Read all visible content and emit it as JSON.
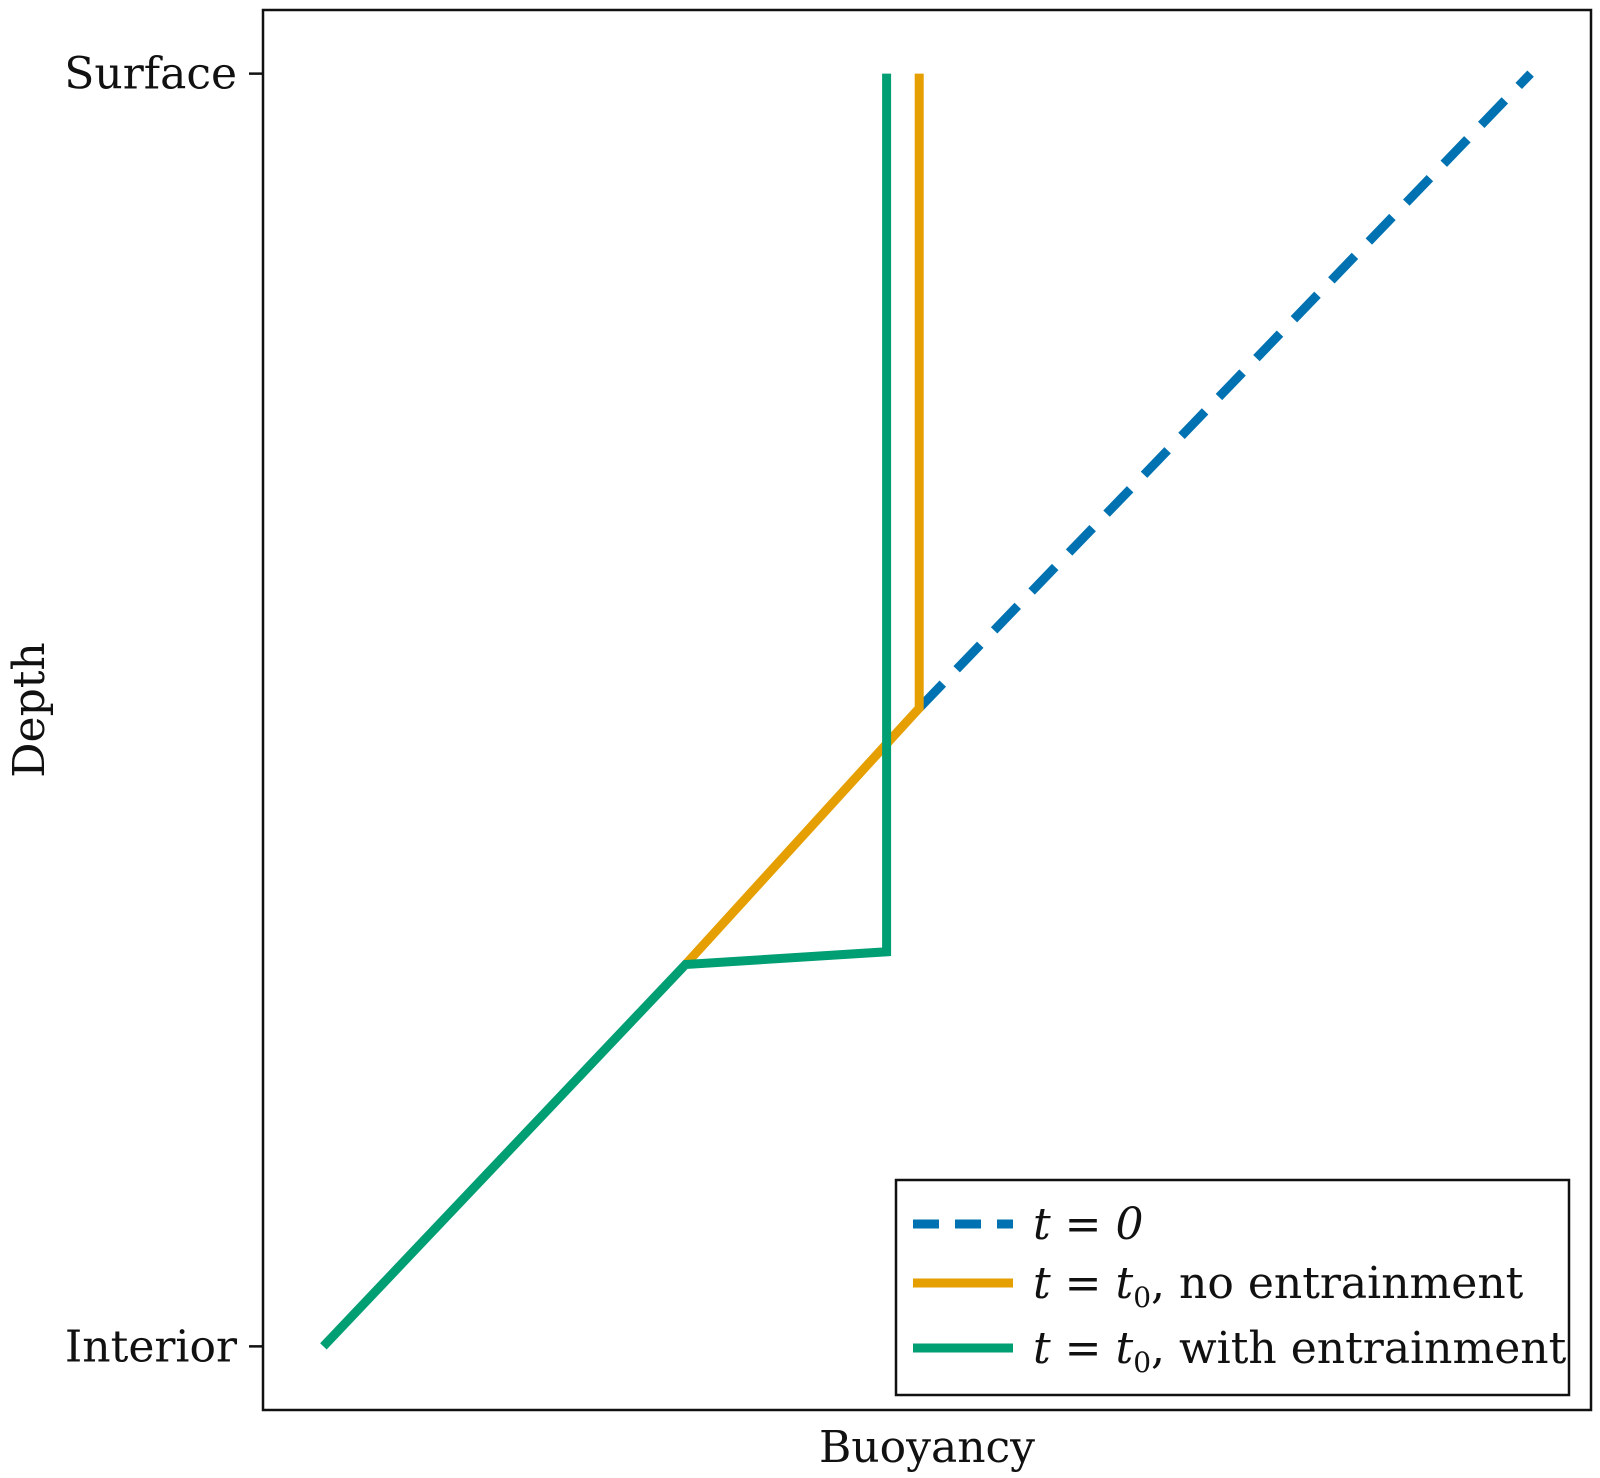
{
  "chart_data": {
    "type": "line",
    "title": "",
    "xlabel": "Buoyancy",
    "ylabel": "Depth",
    "xlim": [
      -0.05,
      1.05
    ],
    "ylim": [
      -0.05,
      1.05
    ],
    "yticks": [
      {
        "label": "Interior",
        "value": 0
      },
      {
        "label": "Surface",
        "value": 1
      }
    ],
    "xticks": [],
    "grid": false,
    "legend": {
      "placement": "bottom-right",
      "entries": [
        {
          "text_main": "t = 0",
          "text_sub": "",
          "text_tail": ""
        },
        {
          "text_main": "t = t",
          "text_sub": "0",
          "text_tail": ", no entrainment"
        },
        {
          "text_main": "t = t",
          "text_sub": "0",
          "text_tail": ", with entrainment"
        }
      ]
    },
    "series": [
      {
        "legend_index": 0,
        "color": "#0072B2",
        "dash": true,
        "points": [
          [
            0.4935,
            0.5015
          ],
          [
            1.0,
            1.0
          ]
        ]
      },
      {
        "legend_index": 1,
        "color": "#E69F00",
        "dash": false,
        "points": [
          [
            0.3,
            0.3
          ],
          [
            0.4935,
            0.5015
          ],
          [
            0.4935,
            1.0
          ]
        ]
      },
      {
        "legend_index": 2,
        "color": "#009E73",
        "dash": false,
        "points": [
          [
            0.0,
            0.0
          ],
          [
            0.3,
            0.3
          ],
          [
            0.4665,
            0.31
          ],
          [
            0.4665,
            1.0
          ]
        ]
      }
    ]
  }
}
